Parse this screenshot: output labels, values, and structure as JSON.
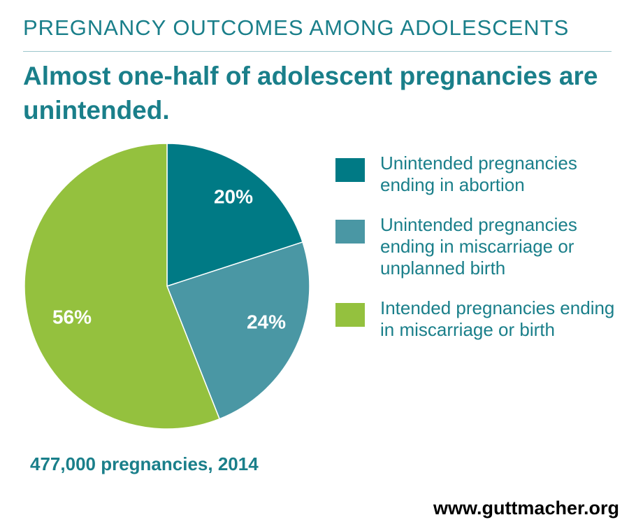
{
  "kicker": "PREGNANCY OUTCOMES AMONG ADOLESCENTS",
  "headline": "Almost one-half of adolescent pregnancies are unintended.",
  "note": "477,000 pregnancies, 2014",
  "source": "www.guttmacher.org",
  "chart_data": {
    "type": "pie",
    "title": "Almost one-half of adolescent pregnancies are unintended.",
    "slices": [
      {
        "name": "Unintended pregnancies ending in abortion",
        "value": 20,
        "label": "20%",
        "color": "#007a85"
      },
      {
        "name": "Unintended pregnancies ending in miscarriage or unplanned birth",
        "value": 24,
        "label": "24%",
        "color": "#4a97a4"
      },
      {
        "name": "Intended pregnancies ending in miscarriage or birth",
        "value": 56,
        "label": "56%",
        "color": "#94c13e"
      }
    ],
    "legend_position": "right"
  }
}
